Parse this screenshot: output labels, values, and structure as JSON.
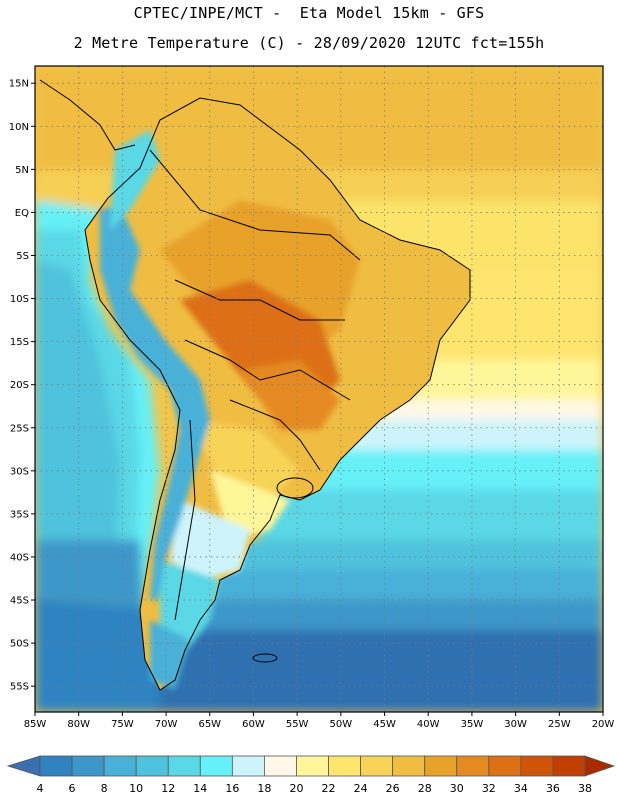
{
  "header": {
    "line1": "CPTEC/INPE/MCT -  Eta Model 15km - GFS",
    "line2": "2 Metre Temperature (C) - 28/09/2020 12UTC fct=155h"
  },
  "map": {
    "lat_labels": [
      "15N",
      "10N",
      "5N",
      "EQ",
      "5S",
      "10S",
      "15S",
      "20S",
      "25S",
      "30S",
      "35S",
      "40S",
      "45S",
      "50S",
      "55S"
    ],
    "lon_labels": [
      "85W",
      "80W",
      "75W",
      "70W",
      "65W",
      "60W",
      "55W",
      "50W",
      "45W",
      "40W",
      "35W",
      "30W",
      "25W",
      "20W"
    ],
    "lon_range": [
      -85,
      -20
    ],
    "lat_range": [
      -58,
      17
    ],
    "grid": "dotted",
    "variable": "2 Metre Temperature"
  },
  "colorbar": {
    "labels": [
      "4",
      "6",
      "8",
      "10",
      "12",
      "14",
      "16",
      "18",
      "20",
      "22",
      "24",
      "26",
      "28",
      "30",
      "32",
      "34",
      "36",
      "38"
    ],
    "colors": [
      "#3b6fb0",
      "#2f83c0",
      "#3d97c9",
      "#49b0d8",
      "#4fc2dd",
      "#5ad8e6",
      "#66f0f7",
      "#cdf4fb",
      "#fff8e8",
      "#fff69a",
      "#fde56e",
      "#f7d357",
      "#f0bd43",
      "#e8a229",
      "#e58a21",
      "#dd6f14",
      "#d05408",
      "#c23f03",
      "#a82c00"
    ]
  }
}
